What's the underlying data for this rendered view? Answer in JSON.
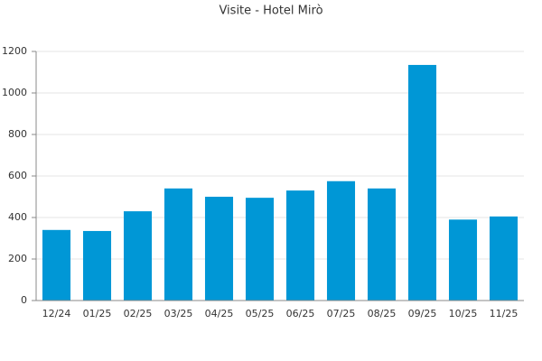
{
  "chart_data": {
    "type": "bar",
    "title": "Visite - Hotel Mirò",
    "categories": [
      "12/24",
      "01/25",
      "02/25",
      "03/25",
      "04/25",
      "05/25",
      "06/25",
      "07/25",
      "08/25",
      "09/25",
      "10/25",
      "11/25"
    ],
    "values": [
      340,
      335,
      430,
      540,
      500,
      495,
      530,
      575,
      540,
      1135,
      390,
      405
    ],
    "color": "#0097d6",
    "ylim": [
      0,
      1200
    ],
    "yticks": [
      0,
      200,
      400,
      600,
      800,
      1000,
      1200
    ],
    "grid": true
  }
}
